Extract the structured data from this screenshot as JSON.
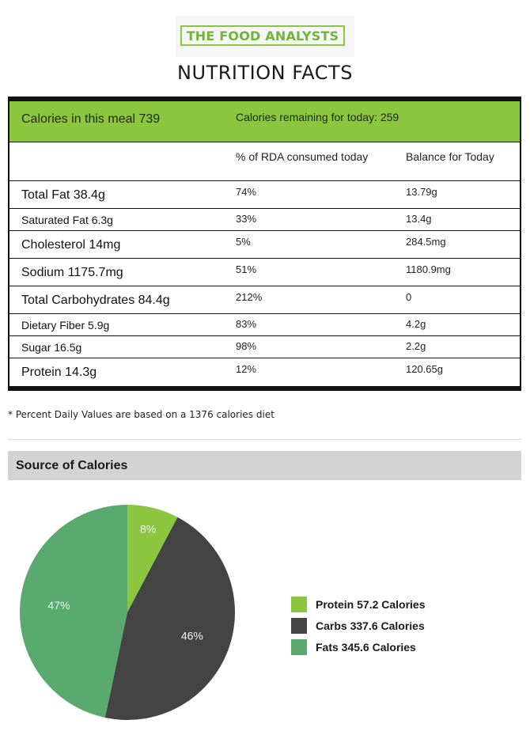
{
  "brand": "THE FOOD ANALYSTS",
  "title": "NUTRITION FACTS",
  "table": {
    "calories_label": "Calories in this meal 739",
    "remaining_label": "Calories remaining for today: 259",
    "col_rda": "% of RDA consumed today",
    "col_balance": "Balance for Today",
    "rows": [
      {
        "name": "Total Fat 38.4g",
        "rda": "74%",
        "balance": "13.79g"
      },
      {
        "name": "Saturated Fat 6.3g",
        "rda": "33%",
        "balance": "13.4g"
      },
      {
        "name": "Cholesterol 14mg",
        "rda": "5%",
        "balance": "284.5mg"
      },
      {
        "name": "Sodium 1175.7mg",
        "rda": "51%",
        "balance": "1180.9mg"
      },
      {
        "name": "Total Carbohydrates 84.4g",
        "rda": "212%",
        "balance": "0"
      },
      {
        "name": "Dietary Fiber 5.9g",
        "rda": "83%",
        "balance": "4.2g"
      },
      {
        "name": "Sugar 16.5g",
        "rda": "98%",
        "balance": "2.2g"
      },
      {
        "name": "Protein 14.3g",
        "rda": "12%",
        "balance": "120.65g"
      }
    ]
  },
  "footnote": "* Percent Daily Values are based on a 1376 calories diet",
  "section_title": "Source of Calories",
  "colors": {
    "brand_green": "#8cc63f",
    "protein": "#8cc63f",
    "carbs": "#444444",
    "fats": "#5aa96f"
  },
  "chart_data": {
    "type": "pie",
    "slices": [
      {
        "name": "Protein",
        "value": 57.2,
        "percent_label": "8%",
        "legend": "Protein 57.2 Calories",
        "color": "#8cc63f"
      },
      {
        "name": "Carbs",
        "value": 337.6,
        "percent_label": "46%",
        "legend": "Carbs 337.6 Calories",
        "color": "#444444"
      },
      {
        "name": "Fats",
        "value": 345.6,
        "percent_label": "47%",
        "legend": "Fats 345.6 Calories",
        "color": "#5aa96f"
      }
    ],
    "legend_placement": "right"
  }
}
